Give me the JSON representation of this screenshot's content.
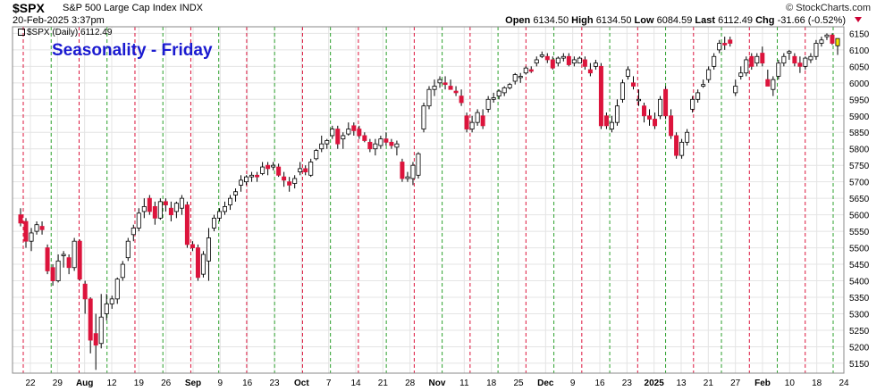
{
  "header": {
    "symbol": "$SPX",
    "name": "S&P 500 Large Cap Index",
    "exchange": "INDX",
    "brand": "© StockCharts.com",
    "datetime": "20-Feb-2025 3:37pm",
    "open_label": "Open",
    "open": "6134.50",
    "high_label": "High",
    "high": "6134.50",
    "low_label": "Low",
    "low": "6084.59",
    "last_label": "Last",
    "last": "6112.49",
    "chg_label": "Chg",
    "chg": "-31.66 (-0.52%)"
  },
  "series_label": "$SPX (Daily) 6112.49",
  "chart_data": {
    "type": "candlestick",
    "title": "Seasonality - Friday",
    "ylim": [
      5120,
      6170
    ],
    "yticks": [
      5150,
      5200,
      5250,
      5300,
      5350,
      5400,
      5450,
      5500,
      5550,
      5600,
      5650,
      5700,
      5750,
      5800,
      5850,
      5900,
      5950,
      6000,
      6050,
      6100,
      6150
    ],
    "xticks": [
      "22",
      "29",
      "Aug",
      "12",
      "19",
      "26",
      "Sep",
      "9",
      "16",
      "23",
      "Oct",
      "7",
      "14",
      "21",
      "28",
      "Nov",
      "11",
      "18",
      "25",
      "Dec",
      "9",
      "16",
      "23",
      "2025",
      "13",
      "21",
      "27",
      "Feb",
      "10",
      "18",
      "24"
    ],
    "bold_ticks": [
      "Aug",
      "Sep",
      "Oct",
      "Nov",
      "Dec",
      "2025",
      "Feb"
    ],
    "colors": {
      "up": "#ffffff",
      "down": "#dc143c",
      "neutral": "#000000",
      "last": "#f3e600",
      "green_line": "#2ca02c",
      "red_line": "#dc143c",
      "grid": "#e4e4e4"
    },
    "grid": true,
    "legend": "none",
    "candles": [
      [
        5600,
        5620,
        5565,
        5575
      ],
      [
        5580,
        5590,
        5500,
        5520
      ],
      [
        5520,
        5560,
        5490,
        5545
      ],
      [
        5550,
        5580,
        5540,
        5570
      ],
      [
        5565,
        5580,
        5540,
        5555
      ],
      [
        5500,
        5510,
        5420,
        5430
      ],
      [
        5440,
        5450,
        5385,
        5400
      ],
      [
        5400,
        5480,
        5395,
        5460
      ],
      [
        5480,
        5490,
        5440,
        5480
      ],
      [
        5470,
        5480,
        5420,
        5440
      ],
      [
        5440,
        5530,
        5430,
        5520
      ],
      [
        5520,
        5525,
        5400,
        5405
      ],
      [
        5390,
        5400,
        5300,
        5345
      ],
      [
        5345,
        5350,
        5180,
        5220
      ],
      [
        5240,
        5300,
        5130,
        5205
      ],
      [
        5210,
        5360,
        5195,
        5290
      ],
      [
        5300,
        5360,
        5280,
        5330
      ],
      [
        5330,
        5355,
        5315,
        5345
      ],
      [
        5345,
        5410,
        5330,
        5405
      ],
      [
        5410,
        5460,
        5400,
        5450
      ],
      [
        5470,
        5530,
        5460,
        5520
      ],
      [
        5540,
        5570,
        5520,
        5560
      ],
      [
        5560,
        5620,
        5550,
        5605
      ],
      [
        5610,
        5650,
        5590,
        5625
      ],
      [
        5650,
        5660,
        5600,
        5610
      ],
      [
        5625,
        5640,
        5570,
        5590
      ],
      [
        5590,
        5650,
        5585,
        5640
      ],
      [
        5640,
        5650,
        5610,
        5630
      ],
      [
        5620,
        5640,
        5580,
        5600
      ],
      [
        5610,
        5640,
        5590,
        5635
      ],
      [
        5620,
        5660,
        5600,
        5650
      ],
      [
        5630,
        5640,
        5500,
        5510
      ],
      [
        5510,
        5520,
        5490,
        5500
      ],
      [
        5500,
        5510,
        5400,
        5410
      ],
      [
        5420,
        5490,
        5410,
        5480
      ],
      [
        5460,
        5560,
        5400,
        5530
      ],
      [
        5560,
        5600,
        5550,
        5590
      ],
      [
        5590,
        5620,
        5580,
        5610
      ],
      [
        5610,
        5640,
        5600,
        5625
      ],
      [
        5630,
        5660,
        5615,
        5650
      ],
      [
        5660,
        5680,
        5640,
        5670
      ],
      [
        5690,
        5720,
        5670,
        5705
      ],
      [
        5700,
        5720,
        5690,
        5715
      ],
      [
        5715,
        5730,
        5700,
        5720
      ],
      [
        5720,
        5730,
        5700,
        5715
      ],
      [
        5725,
        5760,
        5720,
        5745
      ],
      [
        5750,
        5760,
        5720,
        5740
      ],
      [
        5745,
        5760,
        5735,
        5750
      ],
      [
        5745,
        5755,
        5715,
        5720
      ],
      [
        5715,
        5730,
        5685,
        5705
      ],
      [
        5700,
        5715,
        5670,
        5690
      ],
      [
        5695,
        5720,
        5680,
        5710
      ],
      [
        5730,
        5760,
        5720,
        5740
      ],
      [
        5740,
        5750,
        5720,
        5730
      ],
      [
        5720,
        5770,
        5715,
        5760
      ],
      [
        5770,
        5800,
        5765,
        5795
      ],
      [
        5800,
        5840,
        5790,
        5815
      ],
      [
        5815,
        5830,
        5800,
        5825
      ],
      [
        5840,
        5870,
        5830,
        5860
      ],
      [
        5860,
        5870,
        5800,
        5815
      ],
      [
        5830,
        5850,
        5800,
        5840
      ],
      [
        5845,
        5880,
        5840,
        5860
      ],
      [
        5870,
        5880,
        5840,
        5855
      ],
      [
        5860,
        5870,
        5830,
        5840
      ],
      [
        5840,
        5850,
        5820,
        5825
      ],
      [
        5820,
        5830,
        5790,
        5800
      ],
      [
        5800,
        5830,
        5780,
        5815
      ],
      [
        5810,
        5840,
        5800,
        5830
      ],
      [
        5830,
        5850,
        5810,
        5820
      ],
      [
        5820,
        5830,
        5800,
        5810
      ],
      [
        5805,
        5825,
        5780,
        5815
      ],
      [
        5760,
        5770,
        5700,
        5710
      ],
      [
        5710,
        5730,
        5700,
        5715
      ],
      [
        5710,
        5760,
        5690,
        5750
      ],
      [
        5720,
        5790,
        5710,
        5785
      ],
      [
        5860,
        5940,
        5850,
        5930
      ],
      [
        5930,
        5990,
        5920,
        5980
      ],
      [
        5980,
        6010,
        5960,
        5990
      ],
      [
        6000,
        6020,
        5985,
        6010
      ],
      [
        6000,
        6020,
        5980,
        5995
      ],
      [
        5990,
        6010,
        5980,
        5980
      ],
      [
        5975,
        5990,
        5960,
        5970
      ],
      [
        5960,
        5980,
        5930,
        5940
      ],
      [
        5900,
        5910,
        5850,
        5860
      ],
      [
        5860,
        5900,
        5850,
        5880
      ],
      [
        5880,
        5920,
        5870,
        5910
      ],
      [
        5900,
        5920,
        5860,
        5870
      ],
      [
        5920,
        5960,
        5910,
        5950
      ],
      [
        5950,
        5970,
        5940,
        5955
      ],
      [
        5960,
        5980,
        5950,
        5975
      ],
      [
        5970,
        5990,
        5960,
        5985
      ],
      [
        5985,
        6000,
        5980,
        5995
      ],
      [
        6005,
        6030,
        5995,
        6025
      ],
      [
        6020,
        6030,
        6000,
        6020
      ],
      [
        6030,
        6050,
        6025,
        6045
      ],
      [
        6040,
        6050,
        6030,
        6035
      ],
      [
        6060,
        6080,
        6050,
        6070
      ],
      [
        6080,
        6095,
        6075,
        6085
      ],
      [
        6080,
        6090,
        6060,
        6070
      ],
      [
        6070,
        6080,
        6040,
        6045
      ],
      [
        6060,
        6080,
        6050,
        6075
      ],
      [
        6075,
        6090,
        6065,
        6080
      ],
      [
        6080,
        6090,
        6050,
        6055
      ],
      [
        6060,
        6080,
        6050,
        6070
      ],
      [
        6060,
        6080,
        6060,
        6075
      ],
      [
        6070,
        6080,
        6040,
        6050
      ],
      [
        6040,
        6060,
        6020,
        6030
      ],
      [
        6050,
        6070,
        6040,
        6060
      ],
      [
        6050,
        6060,
        5860,
        5870
      ],
      [
        5900,
        5910,
        5860,
        5870
      ],
      [
        5860,
        5900,
        5850,
        5880
      ],
      [
        5880,
        5950,
        5870,
        5930
      ],
      [
        5950,
        6010,
        5940,
        6000
      ],
      [
        6020,
        6050,
        6010,
        6040
      ],
      [
        6000,
        6020,
        5980,
        5990
      ],
      [
        5950,
        5980,
        5930,
        5950
      ],
      [
        5930,
        5940,
        5880,
        5900
      ],
      [
        5900,
        5920,
        5870,
        5890
      ],
      [
        5890,
        5910,
        5860,
        5870
      ],
      [
        5900,
        5960,
        5890,
        5950
      ],
      [
        5980,
        5990,
        5890,
        5900
      ],
      [
        5900,
        5920,
        5830,
        5840
      ],
      [
        5840,
        5850,
        5770,
        5780
      ],
      [
        5780,
        5830,
        5770,
        5820
      ],
      [
        5820,
        5860,
        5810,
        5850
      ],
      [
        5920,
        5960,
        5910,
        5950
      ],
      [
        5950,
        5980,
        5940,
        5970
      ],
      [
        5990,
        6010,
        5985,
        5995
      ],
      [
        6010,
        6050,
        6000,
        6040
      ],
      [
        6050,
        6090,
        6040,
        6080
      ],
      [
        6100,
        6130,
        6090,
        6120
      ],
      [
        6120,
        6140,
        6100,
        6115
      ],
      [
        6130,
        6140,
        6110,
        6120
      ],
      [
        5970,
        6010,
        5960,
        5990
      ],
      [
        6020,
        6050,
        6010,
        6030
      ],
      [
        6030,
        6080,
        6020,
        6070
      ],
      [
        6080,
        6090,
        6040,
        6050
      ],
      [
        6060,
        6090,
        6050,
        6080
      ],
      [
        6090,
        6110,
        6050,
        6060
      ],
      [
        6010,
        6040,
        6000,
        5990
      ],
      [
        5980,
        6020,
        5960,
        6010
      ],
      [
        6020,
        6070,
        6010,
        6060
      ],
      [
        6060,
        6090,
        6050,
        6080
      ],
      [
        6090,
        6100,
        6070,
        6095
      ],
      [
        6080,
        6090,
        6050,
        6060
      ],
      [
        6060,
        6080,
        6030,
        6050
      ],
      [
        6050,
        6080,
        6040,
        6075
      ],
      [
        6070,
        6090,
        6060,
        6080
      ],
      [
        6080,
        6130,
        6070,
        6120
      ],
      [
        6120,
        6140,
        6110,
        6130
      ],
      [
        6140,
        6150,
        6130,
        6145
      ],
      [
        6145,
        6150,
        6115,
        6120
      ],
      [
        6134.5,
        6134.5,
        6084.59,
        6112.49
      ]
    ]
  }
}
